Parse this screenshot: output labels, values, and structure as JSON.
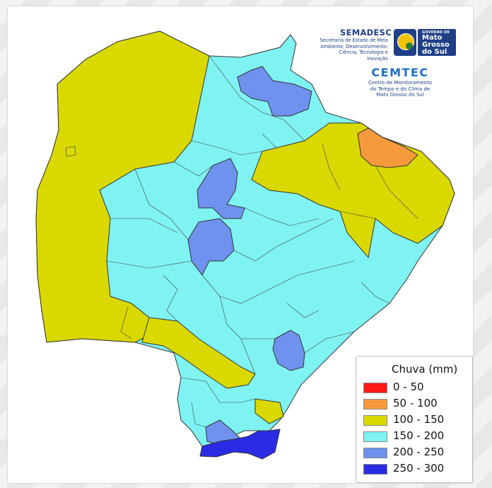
{
  "header": {
    "semadesc": {
      "title": "SEMADESC",
      "subtitle": "Secretaria de Estado de Meio Ambiente, Desenvolvimento, Ciência, Tecnologia e Inovação"
    },
    "government": {
      "small": "GOVERNO DE",
      "big": "Mato\nGrosso\ndo Sul"
    },
    "cemtec": {
      "title": "CEMTEC",
      "subtitle": "Centro de Monitoramento\ndo Tempo e do Clima de\nMato Grosso do Sul"
    }
  },
  "legend": {
    "title": "Chuva (mm)",
    "items": [
      {
        "label": "0 - 50",
        "color": "#ff1a1a"
      },
      {
        "label": "50 - 100",
        "color": "#f59a3c"
      },
      {
        "label": "100 - 150",
        "color": "#d9d900"
      },
      {
        "label": "150 - 200",
        "color": "#7ff2f2"
      },
      {
        "label": "200 - 250",
        "color": "#6f92ee"
      },
      {
        "label": "250 - 300",
        "color": "#2b2be6"
      }
    ]
  },
  "colors": {
    "outline": "#333333",
    "yellow": "#d9d900",
    "cyan": "#7ff2f2",
    "lightblue": "#6f92ee",
    "darkblue": "#2b2be6",
    "orange": "#f59a3c"
  }
}
